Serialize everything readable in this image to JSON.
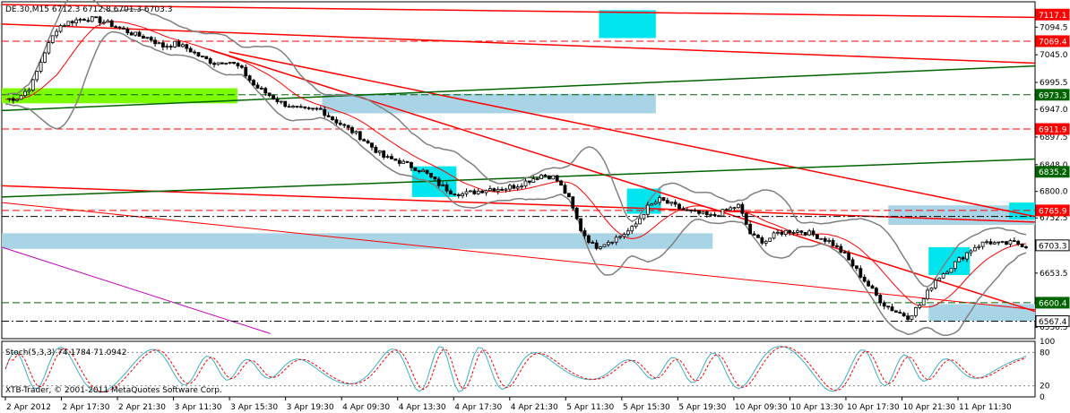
{
  "header": {
    "symbol_line": "DE.30,M15  6712.3 6712.8 6701.3 6703.3"
  },
  "footer": {
    "copyright": "XTB-Trader, © 2001-2011 MetaQuotes Software Corp."
  },
  "colors": {
    "background": "#ffffff",
    "candles": "#000000",
    "bollinger": "#808080",
    "moving_average": "#ff0000",
    "resistance": "#ff0000",
    "support": "#006400",
    "zone_blue": "#a8d4e6",
    "zone_cyan": "#00e5ee",
    "zone_green": "#7cfc00",
    "stoch_main": "#40b0c0",
    "stoch_signal": "#ff0000",
    "purple_line": "#c000c0"
  },
  "chart_data": [
    {
      "type": "candlestick",
      "title": "DE.30,M15",
      "ylim": [
        6536,
        7140
      ],
      "price_axis_ticks": [
        "7094.5",
        "7045.0",
        "6995.5",
        "6947.0",
        "6897.5",
        "6848.0",
        "6800.0",
        "6752.5",
        "6703.0",
        "6653.5",
        "6604.0",
        "6556.5"
      ],
      "price_labels": [
        {
          "value": "7117.1",
          "kind": "red"
        },
        {
          "value": "7069.4",
          "kind": "red"
        },
        {
          "value": "6973.3",
          "kind": "green"
        },
        {
          "value": "6911.9",
          "kind": "red"
        },
        {
          "value": "6835.2",
          "kind": "green"
        },
        {
          "value": "6765.9",
          "kind": "red"
        },
        {
          "value": "6703.3",
          "kind": "current"
        },
        {
          "value": "6600.4",
          "kind": "green"
        },
        {
          "value": "6567.4",
          "kind": "current"
        }
      ],
      "time_labels": [
        "2 Apr 2012",
        "2 Apr 17:30",
        "2 Apr 21:30",
        "3 Apr 11:30",
        "3 Apr 15:30",
        "3 Apr 19:30",
        "4 Apr 09:30",
        "4 Apr 13:30",
        "4 Apr 17:30",
        "4 Apr 21:30",
        "5 Apr 11:30",
        "5 Apr 15:30",
        "5 Apr 19:30",
        "10 Apr 09:30",
        "10 Apr 13:30",
        "10 Apr 17:30",
        "10 Apr 21:30",
        "11 Apr 11:30"
      ],
      "close_path": [
        6965,
        6968,
        6990,
        7050,
        7095,
        7105,
        7110,
        7108,
        7100,
        7090,
        7080,
        7075,
        7060,
        7065,
        7055,
        7040,
        7030,
        7035,
        7020,
        6990,
        6975,
        6960,
        6950,
        6945,
        6948,
        6930,
        6915,
        6900,
        6880,
        6860,
        6855,
        6845,
        6835,
        6815,
        6800,
        6795,
        6800,
        6805,
        6805,
        6810,
        6820,
        6830,
        6825,
        6790,
        6730,
        6700,
        6710,
        6720,
        6735,
        6770,
        6785,
        6775,
        6765,
        6760,
        6755,
        6765,
        6775,
        6720,
        6710,
        6725,
        6730,
        6728,
        6720,
        6710,
        6690,
        6660,
        6630,
        6600,
        6585,
        6575,
        6600,
        6640,
        6660,
        6680,
        6700,
        6710,
        6705,
        6708,
        6703.3
      ],
      "levels": {
        "red_dashed": [
          "7069.4",
          "6911.9",
          "6765.9"
        ],
        "green_dashed": [
          "6973.3",
          "6600.4"
        ],
        "black_dashdot": [
          "6567.4"
        ]
      }
    },
    {
      "type": "line",
      "title": "Stoch(5,3,3) 74.1784 71.0942",
      "ylim": [
        0,
        100
      ],
      "ticks": [
        "100",
        "80",
        "20",
        "0"
      ],
      "series": [
        {
          "name": "Stoch main",
          "value": 74.1784
        },
        {
          "name": "Stoch signal",
          "value": 71.0942
        }
      ]
    }
  ]
}
